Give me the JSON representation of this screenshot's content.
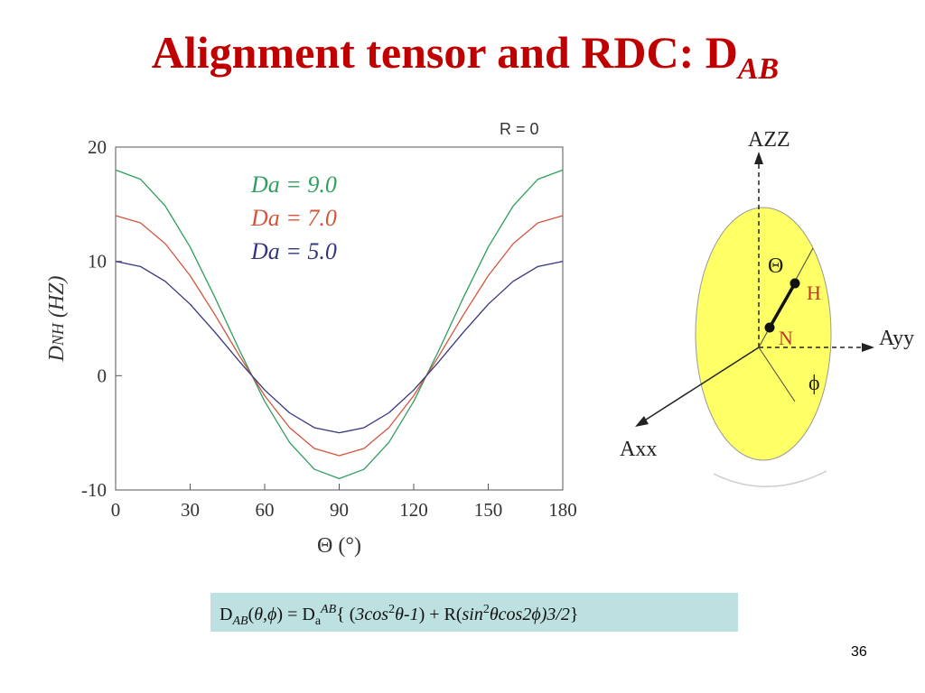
{
  "slide_title": {
    "text": "Alignment tensor and  RDC: D",
    "sub": "AB"
  },
  "chart_data": {
    "type": "line",
    "annotation": "R = 0",
    "xlabel": "Θ (°)",
    "ylabel": {
      "main": "D",
      "sub": "NH",
      "unit": " (HZ)"
    },
    "x": [
      0,
      10,
      20,
      30,
      40,
      50,
      60,
      70,
      80,
      90,
      100,
      110,
      120,
      130,
      140,
      150,
      160,
      170,
      180
    ],
    "xlim": [
      0,
      180
    ],
    "xticks": [
      0,
      30,
      60,
      90,
      120,
      150,
      180
    ],
    "ylim": [
      -10,
      20
    ],
    "yticks": [
      -10,
      0,
      10,
      20
    ],
    "series": [
      {
        "name": "Da = 9.0",
        "color": "#2f9e5e",
        "values": [
          18,
          17.19,
          14.84,
          11.25,
          6.84,
          2.16,
          -2.25,
          -5.84,
          -8.19,
          -9,
          -8.19,
          -5.84,
          -2.25,
          2.16,
          6.84,
          11.25,
          14.84,
          17.19,
          18
        ]
      },
      {
        "name": "Da = 7.0",
        "color": "#d4553d",
        "values": [
          14,
          13.37,
          11.54,
          8.75,
          5.32,
          1.68,
          -1.75,
          -4.54,
          -6.37,
          -7,
          -6.37,
          -4.54,
          -1.75,
          1.68,
          5.32,
          8.75,
          11.54,
          13.37,
          14
        ]
      },
      {
        "name": "Da = 5.0",
        "color": "#35357f",
        "values": [
          10,
          9.55,
          8.25,
          6.25,
          3.8,
          1.2,
          -1.25,
          -3.25,
          -4.55,
          -5,
          -4.55,
          -3.25,
          -1.25,
          1.2,
          3.8,
          6.25,
          8.25,
          9.55,
          10
        ]
      }
    ]
  },
  "diagram": {
    "azz": "AZZ",
    "ayy": "Ayy",
    "axx": "Axx",
    "theta": "Θ",
    "h": "H",
    "n": "N",
    "phi": "ϕ"
  },
  "formula": [
    "D",
    "AB",
    "(",
    "θ,ϕ",
    ") = D",
    "a",
    "AB",
    "{ (",
    "3cos",
    "2",
    "θ-1",
    ") + R(",
    "sin",
    "2",
    "θcos2ϕ",
    ")3/2",
    "}"
  ],
  "page_number": "36"
}
